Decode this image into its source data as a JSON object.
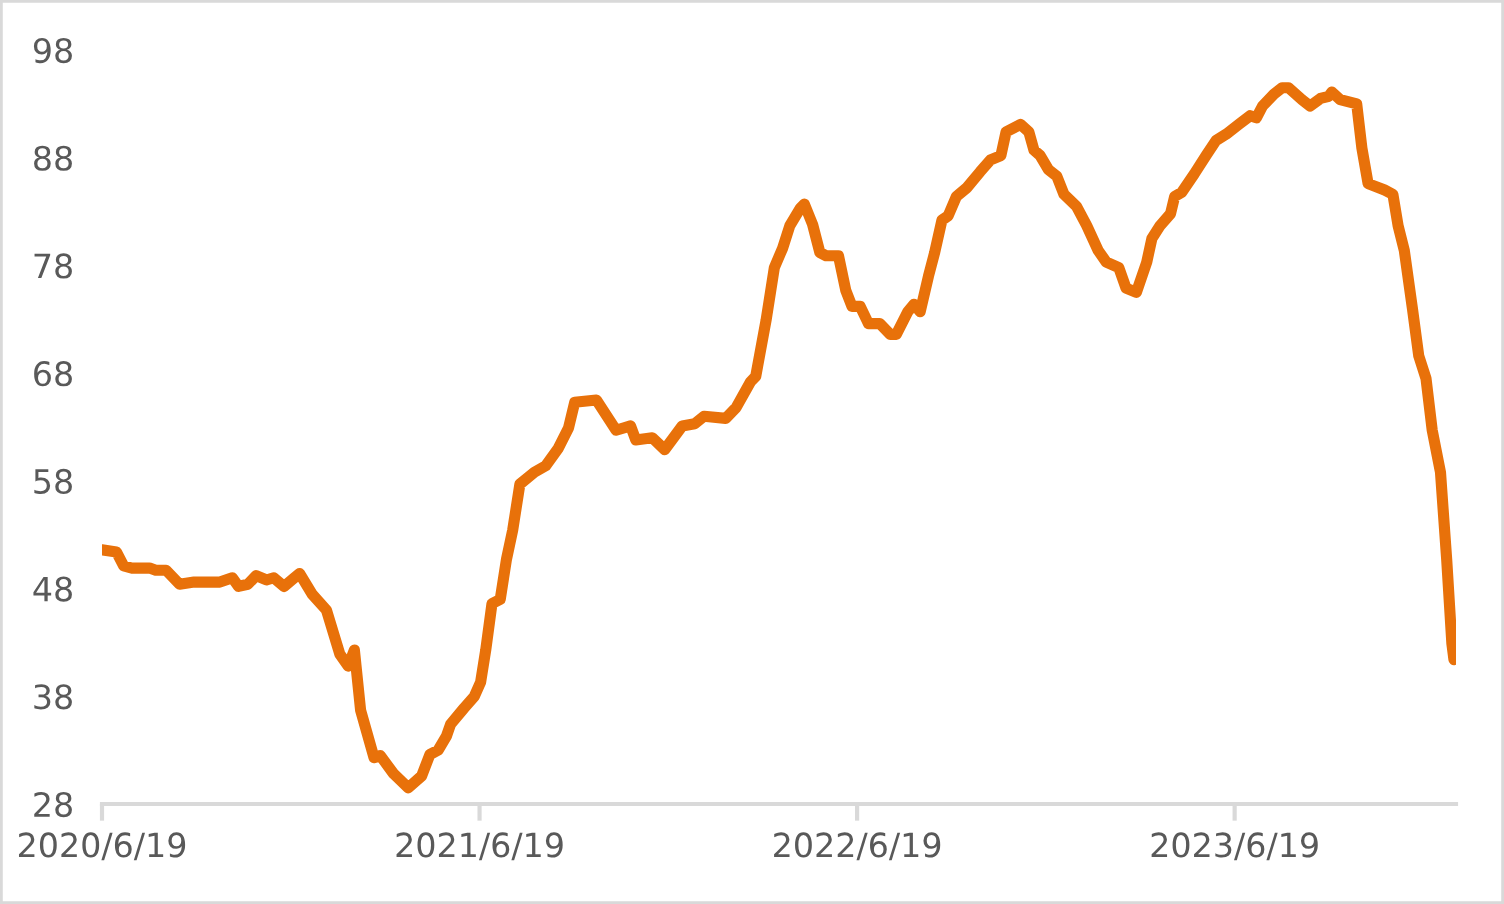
{
  "chart_data": {
    "type": "line",
    "grid": false,
    "legend": false,
    "marker": "none",
    "line_style": "solid",
    "xlim": [
      "2020-06-19",
      "2024-01-19"
    ],
    "xticks": [
      {
        "value": "2020-06-19",
        "label": "2020/6/19"
      },
      {
        "value": "2021-06-19",
        "label": "2021/6/19"
      },
      {
        "value": "2022-06-19",
        "label": "2022/6/19"
      },
      {
        "value": "2023-06-19",
        "label": "2023/6/19"
      }
    ],
    "ylim": [
      28,
      98
    ],
    "yticks": [
      28,
      38,
      48,
      58,
      68,
      78,
      88,
      98
    ],
    "series": [
      {
        "color": "#e8710a",
        "x": [
          "2020-06-19",
          "2020-07-03",
          "2020-07-10",
          "2020-07-18",
          "2020-08-04",
          "2020-08-10",
          "2020-08-20",
          "2020-09-02",
          "2020-09-16",
          "2020-10-11",
          "2020-10-23",
          "2020-10-29",
          "2020-11-07",
          "2020-11-15",
          "2020-11-25",
          "2020-12-02",
          "2020-12-12",
          "2020-12-22",
          "2020-12-27",
          "2021-01-08",
          "2021-01-22",
          "2021-02-04",
          "2021-02-12",
          "2021-02-18",
          "2021-02-24",
          "2021-03-09",
          "2021-03-15",
          "2021-03-28",
          "2021-04-11",
          "2021-04-24",
          "2021-05-02",
          "2021-05-10",
          "2021-05-18",
          "2021-05-22",
          "2021-06-04",
          "2021-06-14",
          "2021-06-20",
          "2021-06-25",
          "2021-07-01",
          "2021-07-09",
          "2021-07-15",
          "2021-07-21",
          "2021-07-28",
          "2021-08-11",
          "2021-08-22",
          "2021-09-03",
          "2021-09-13",
          "2021-09-19",
          "2021-10-10",
          "2021-10-29",
          "2021-11-12",
          "2021-11-17",
          "2021-12-03",
          "2021-12-15",
          "2022-01-01",
          "2022-01-13",
          "2022-01-22",
          "2022-02-12",
          "2022-02-22",
          "2022-03-08",
          "2022-03-13",
          "2022-03-23",
          "2022-03-31",
          "2022-04-08",
          "2022-04-15",
          "2022-04-25",
          "2022-04-29",
          "2022-05-07",
          "2022-05-14",
          "2022-05-20",
          "2022-06-01",
          "2022-06-08",
          "2022-06-14",
          "2022-06-22",
          "2022-06-30",
          "2022-07-11",
          "2022-07-21",
          "2022-07-27",
          "2022-08-07",
          "2022-08-13",
          "2022-08-19",
          "2022-08-27",
          "2022-09-02",
          "2022-09-09",
          "2022-09-15",
          "2022-09-23",
          "2022-10-03",
          "2022-10-16",
          "2022-10-26",
          "2022-11-05",
          "2022-11-10",
          "2022-11-24",
          "2022-12-02",
          "2022-12-07",
          "2022-12-13",
          "2022-12-21",
          "2022-12-29",
          "2023-01-05",
          "2023-01-17",
          "2023-01-27",
          "2023-02-07",
          "2023-02-15",
          "2023-02-27",
          "2023-03-06",
          "2023-03-16",
          "2023-03-26",
          "2023-03-31",
          "2023-04-08",
          "2023-04-18",
          "2023-04-22",
          "2023-04-29",
          "2023-05-11",
          "2023-05-23",
          "2023-06-01",
          "2023-06-11",
          "2023-06-23",
          "2023-07-04",
          "2023-07-10",
          "2023-07-16",
          "2023-07-27",
          "2023-08-04",
          "2023-08-10",
          "2023-08-23",
          "2023-08-31",
          "2023-09-10",
          "2023-09-18",
          "2023-09-21",
          "2023-09-29",
          "2023-10-15",
          "2023-10-20",
          "2023-10-26",
          "2023-11-11",
          "2023-11-19",
          "2023-11-24",
          "2023-11-30",
          "2023-12-08",
          "2023-12-14",
          "2023-12-21",
          "2023-12-27",
          "2024-01-04",
          "2024-01-10",
          "2024-01-15",
          "2024-01-17"
        ],
        "values": [
          51.6,
          51.4,
          50.1,
          49.9,
          49.9,
          49.7,
          49.7,
          48.4,
          48.6,
          48.6,
          49.0,
          48.2,
          48.4,
          49.2,
          48.8,
          49.0,
          48.2,
          49.0,
          49.4,
          47.5,
          46.0,
          41.9,
          40.8,
          42.3,
          36.7,
          32.3,
          32.5,
          30.8,
          29.5,
          30.6,
          32.6,
          33.0,
          34.3,
          35.4,
          36.9,
          38.0,
          39.3,
          42.3,
          46.6,
          47.0,
          50.7,
          53.4,
          57.7,
          58.8,
          59.4,
          61.0,
          62.9,
          65.3,
          65.5,
          62.7,
          63.1,
          61.8,
          62.0,
          60.9,
          63.1,
          63.3,
          64.0,
          63.8,
          64.8,
          67.2,
          67.7,
          72.9,
          77.8,
          79.6,
          81.7,
          83.3,
          83.7,
          81.8,
          79.2,
          78.9,
          78.9,
          75.7,
          74.2,
          74.2,
          72.6,
          72.6,
          71.6,
          71.6,
          73.7,
          74.4,
          73.7,
          77.0,
          79.2,
          82.2,
          82.6,
          84.4,
          85.2,
          86.7,
          87.8,
          88.2,
          90.4,
          91.1,
          90.4,
          88.7,
          88.2,
          86.9,
          86.3,
          84.6,
          83.5,
          81.7,
          79.4,
          78.3,
          77.8,
          75.9,
          75.5,
          78.3,
          80.5,
          81.7,
          82.8,
          84.4,
          84.8,
          86.5,
          88.3,
          89.6,
          90.2,
          91.1,
          91.9,
          91.7,
          92.8,
          93.9,
          94.5,
          94.5,
          93.4,
          92.8,
          93.5,
          93.7,
          94.1,
          93.4,
          93.0,
          88.9,
          85.6,
          85.0,
          84.6,
          81.7,
          79.4,
          73.9,
          69.6,
          67.5,
          62.7,
          58.8,
          50.7,
          42.9,
          41.4
        ]
      }
    ]
  }
}
